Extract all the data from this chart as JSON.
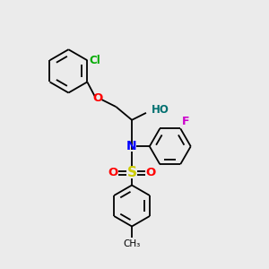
{
  "background_color": "#ebebeb",
  "bond_color": "#000000",
  "lw": 1.3,
  "ring_r": 0.72,
  "atoms": {
    "Cl": {
      "color": "#00aa00"
    },
    "O_ether": {
      "color": "#ff0000"
    },
    "HO": {
      "color": "#007070"
    },
    "N": {
      "color": "#0000ff"
    },
    "S": {
      "color": "#cccc00"
    },
    "O_s": {
      "color": "#ff0000"
    },
    "F": {
      "color": "#cc00cc"
    }
  },
  "figsize": [
    3.0,
    3.0
  ],
  "dpi": 100,
  "xlim": [
    0,
    10
  ],
  "ylim": [
    0,
    10
  ]
}
